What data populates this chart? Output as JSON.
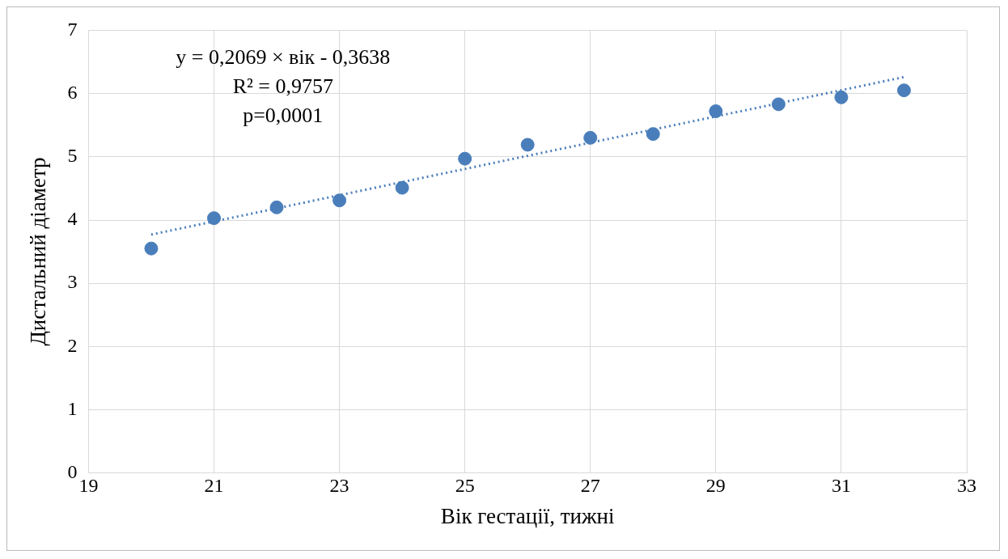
{
  "chart_data": {
    "type": "scatter",
    "xlabel": "Вік гестації, тижні",
    "ylabel": "Дистальний діаметр",
    "xlim": [
      19,
      33
    ],
    "xticks": [
      19,
      21,
      23,
      25,
      27,
      29,
      31,
      33
    ],
    "ylim": [
      0,
      7
    ],
    "yticks": [
      0,
      1,
      2,
      3,
      4,
      5,
      6,
      7
    ],
    "grid": true,
    "legend": false,
    "marker": "circle",
    "annotations": [
      "y = 0,2069 × вік - 0,3638",
      "R² = 0,9757",
      "p=0,0001"
    ],
    "series": [
      {
        "color": "#4a7ebb",
        "x": [
          20,
          21,
          22,
          23,
          24,
          25,
          26,
          27,
          28,
          29,
          30,
          31,
          32
        ],
        "values": [
          3.55,
          4.03,
          4.2,
          4.31,
          4.51,
          4.97,
          5.19,
          5.3,
          5.36,
          5.72,
          5.83,
          5.94,
          6.05
        ]
      },
      {
        "type": "line",
        "color": "#4a7ebb",
        "line_style": "dotted",
        "marker": "none",
        "x": [
          20,
          32
        ],
        "values": [
          3.77,
          6.26
        ]
      }
    ]
  }
}
